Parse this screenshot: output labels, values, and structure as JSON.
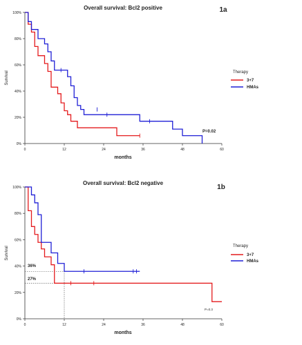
{
  "colors": {
    "red": "#e41a1c",
    "blue": "#1f1fd6",
    "axis": "#333333"
  },
  "chart_data": [
    {
      "type": "line",
      "subtype": "kaplan-meier",
      "panel_label": "1a",
      "title": "Overall survival: Bcl2 positive",
      "xlabel": "months",
      "ylabel": "Survival",
      "xlim": [
        0,
        60
      ],
      "ylim": [
        0,
        100
      ],
      "xticks": [
        0,
        12,
        24,
        36,
        48,
        60
      ],
      "yticks": [
        0,
        20,
        40,
        60,
        80,
        100
      ],
      "ytick_labels": [
        "0%",
        "20%",
        "40%",
        "60%",
        "80%",
        "100%"
      ],
      "legend": {
        "title": "Therapy",
        "position": "right"
      },
      "annotations": [
        {
          "text": "P=0.02",
          "x": 54,
          "y": 10
        }
      ],
      "series": [
        {
          "name": "3+7",
          "color": "#e41a1c",
          "x": [
            0,
            1,
            2,
            3,
            4,
            6,
            7,
            8,
            10,
            11,
            12,
            13,
            14,
            16,
            28,
            35
          ],
          "y": [
            100,
            91,
            85,
            74,
            67,
            61,
            55,
            43,
            38,
            31,
            25,
            22,
            17,
            12,
            6,
            6
          ],
          "censored": [
            [
              35,
              6
            ]
          ]
        },
        {
          "name": "HMAs",
          "color": "#1f1fd6",
          "x": [
            0,
            1,
            2,
            4,
            6,
            7,
            8,
            9,
            13,
            14,
            15,
            16,
            17,
            18,
            23,
            35,
            45,
            48,
            54
          ],
          "y": [
            100,
            93,
            87,
            80,
            76,
            70,
            63,
            56,
            51,
            44,
            35,
            29,
            26,
            22,
            22,
            17,
            11,
            6,
            0
          ],
          "censored": [
            [
              11,
              56
            ],
            [
              22,
              26
            ],
            [
              25,
              22
            ],
            [
              38,
              17
            ]
          ]
        }
      ]
    },
    {
      "type": "line",
      "subtype": "kaplan-meier",
      "panel_label": "1b",
      "title": "Overall survival: Bcl2 negative",
      "xlabel": "months",
      "ylabel": "Survival",
      "xlim": [
        0,
        60
      ],
      "ylim": [
        0,
        100
      ],
      "xticks": [
        0,
        12,
        24,
        36,
        48,
        60
      ],
      "yticks": [
        0,
        20,
        40,
        60,
        80,
        100
      ],
      "ytick_labels": [
        "0%",
        "20%",
        "40%",
        "60%",
        "80%",
        "100%"
      ],
      "legend": {
        "title": "Therapy",
        "position": "right"
      },
      "annotations": [
        {
          "text": "36%",
          "x": 1,
          "y": 40
        },
        {
          "text": "27%",
          "x": 1,
          "y": 30
        },
        {
          "text": "P=0.3",
          "x": 55,
          "y": 12
        }
      ],
      "reference_lines": [
        {
          "y": 36
        },
        {
          "y": 27
        },
        {
          "x": 12
        }
      ],
      "series": [
        {
          "name": "3+7",
          "color": "#e41a1c",
          "x": [
            0,
            1,
            2,
            3,
            4,
            5,
            6,
            8,
            9,
            57,
            60
          ],
          "y": [
            100,
            82,
            70,
            64,
            58,
            53,
            47,
            41,
            27,
            13,
            13
          ],
          "censored": [
            [
              14,
              27
            ],
            [
              21,
              27
            ]
          ]
        },
        {
          "name": "HMAs",
          "color": "#1f1fd6",
          "x": [
            0,
            2,
            3,
            4,
            5,
            8,
            10,
            12,
            35
          ],
          "y": [
            100,
            94,
            88,
            79,
            58,
            50,
            42,
            36,
            36
          ],
          "censored": [
            [
              18,
              36
            ],
            [
              33,
              36
            ],
            [
              34,
              36
            ]
          ]
        }
      ]
    }
  ]
}
